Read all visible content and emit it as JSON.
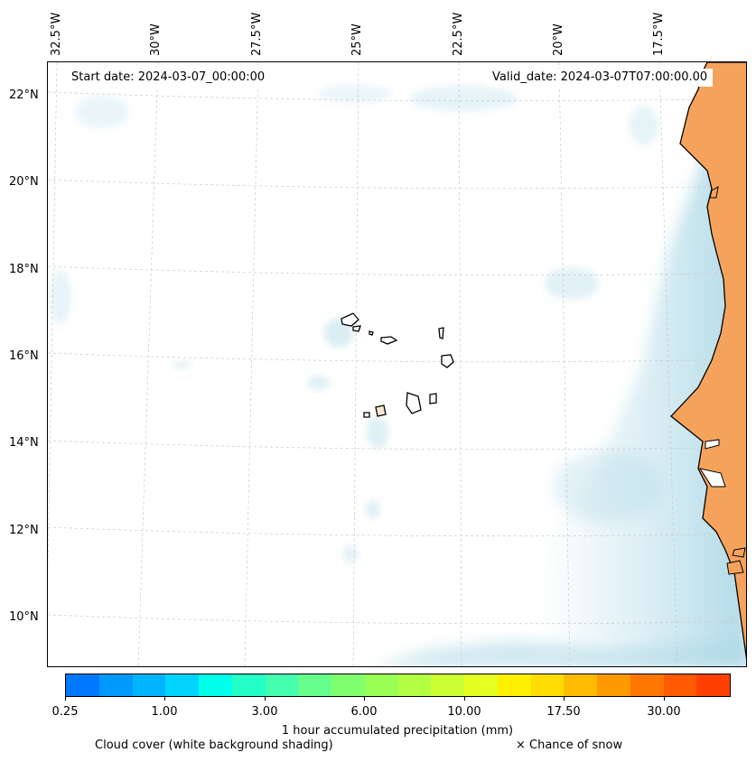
{
  "map": {
    "start_date": "Start date: 2024-03-07_00:00:00",
    "valid_date": "Valid_date: 2024-03-07T07:00:00.00",
    "lon_labels": [
      "32.5°W",
      "30°W",
      "27.5°W",
      "25°W",
      "22.5°W",
      "20°W",
      "17.5°W"
    ],
    "lat_labels": [
      "22°N",
      "20°N",
      "18°N",
      "16°N",
      "14°N",
      "12°N",
      "10°N"
    ],
    "land_color": "#f5a35c",
    "cloud_color": "#add8e6"
  },
  "colorbar": {
    "colors": [
      "#0077ff",
      "#0099ff",
      "#00b4ff",
      "#00d4ff",
      "#00ffe6",
      "#25ffc8",
      "#45ffae",
      "#66ff8c",
      "#80ff6e",
      "#99ff55",
      "#b3ff44",
      "#ccff33",
      "#e6ff22",
      "#fff000",
      "#ffdd00",
      "#ffbb00",
      "#ff9900",
      "#ff7700",
      "#ff5a00",
      "#ff4000"
    ],
    "tick_labels": [
      "0.25",
      "1.00",
      "3.00",
      "6.00",
      "10.00",
      "17.50",
      "30.00"
    ],
    "title": "1 hour accumulated precipitation (mm)"
  },
  "footer": {
    "cloud_cover": "Cloud cover (white background shading)",
    "snow": "× Chance of snow"
  }
}
